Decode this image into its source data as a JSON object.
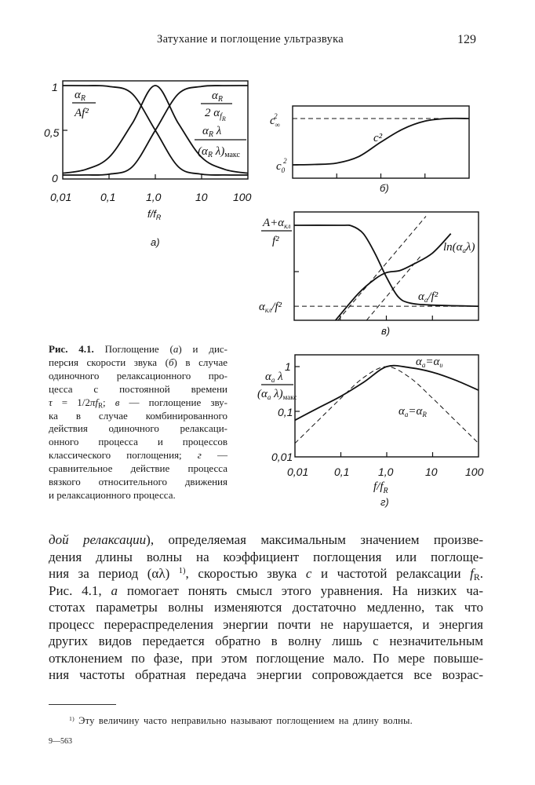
{
  "header": {
    "title": "Затухание и поглощение ультразвука",
    "page_number": "129"
  },
  "figure": {
    "a": {
      "panel": "а)",
      "ticks_x": [
        "0,01",
        "0,1",
        "1,0",
        "10",
        "100"
      ],
      "ticks_y": [
        "1",
        "0,5",
        "0"
      ],
      "xlabel_main": "f/f",
      "xlabel_sub": "R",
      "label1": {
        "num": "α",
        "num_sub": "R",
        "den": "Af²"
      },
      "label2": {
        "num": "α",
        "num_sub": "R",
        "den": "2 α",
        "den_sub": "f",
        "den_subsub": "R"
      },
      "label3": {
        "num": "α",
        "num_sub": "R",
        "num_tail": " λ",
        "den": "(α",
        "den_sub": "R",
        "den_tail": " λ)",
        "den_sub2": "макс"
      }
    },
    "b": {
      "panel": "б)",
      "c_inf": "c",
      "c_inf_sub": "∞",
      "c_inf_sup": "2",
      "c_0": "c",
      "c_0_sub": "0",
      "c_0_sup": "2",
      "curve": "c²"
    },
    "v": {
      "panel": "в)",
      "top_num": "A+α",
      "top_num_sub": "кл",
      "top_den": "f²",
      "bottom": "α",
      "bottom_sub": "кл",
      "bottom_tail": "/f²",
      "ln": "ln(α",
      "ln_sub": "a",
      "ln_tail": "λ)",
      "aa": "α",
      "aa_sub": "a",
      "aa_tail": "/f²"
    },
    "g": {
      "panel": "г)",
      "ticks_x": [
        "0,01",
        "0,1",
        "1,0",
        "10",
        "100"
      ],
      "ticks_y": [
        "1",
        "0,1",
        "0,01"
      ],
      "xlabel_main": "f/f",
      "xlabel_sub": "R",
      "ylabel": {
        "num": "α",
        "num_sub": "a",
        "num_tail": " λ",
        "den": "(α",
        "den_sub": "a",
        "den_tail": " λ)",
        "den_sub2": "макс"
      },
      "nu_label": {
        "a": "α",
        "a_sub": "a",
        "eq": "=α",
        "eq_sub": "υ"
      },
      "r_label": {
        "a": "α",
        "a_sub": "a",
        "eq": "=α",
        "eq_sub": "R"
      }
    }
  },
  "chart_data": [
    {
      "panel": "а)",
      "type": "line",
      "x_scale": "log",
      "xlim": [
        0.01,
        100
      ],
      "ylim": [
        0,
        1
      ],
      "xlabel": "f/fR",
      "series": [
        {
          "name": "αR/Af²",
          "style": "solid",
          "x": [
            0.01,
            0.0316,
            0.1,
            0.316,
            1,
            3.16,
            10,
            31.6,
            100
          ],
          "y": [
            1,
            0.999,
            0.99,
            0.909,
            0.5,
            0.091,
            0.0099,
            0.001,
            0.0001
          ]
        },
        {
          "name": "αR/2αfR",
          "style": "solid",
          "x": [
            0.01,
            0.0316,
            0.1,
            0.316,
            1,
            3.16,
            10,
            31.6,
            100
          ],
          "y": [
            0.0001,
            0.001,
            0.0099,
            0.091,
            0.5,
            0.909,
            0.99,
            0.999,
            1
          ]
        },
        {
          "name": "αRλ/(αRλ)макс",
          "style": "solid",
          "x": [
            0.01,
            0.0316,
            0.1,
            0.316,
            1,
            3.16,
            10,
            31.6,
            100
          ],
          "y": [
            0.02,
            0.063,
            0.198,
            0.575,
            1,
            0.575,
            0.198,
            0.063,
            0.02
          ]
        }
      ]
    },
    {
      "panel": "б)",
      "type": "line",
      "x_scale": "log",
      "xlim": [
        0.01,
        100
      ],
      "ylim": [
        0,
        1
      ],
      "series": [
        {
          "name": "c²",
          "style": "solid",
          "x": [
            0.01,
            0.0316,
            0.1,
            0.316,
            1,
            3.16,
            10,
            31.6,
            100
          ],
          "y": [
            0.185,
            0.19,
            0.21,
            0.3,
            0.5,
            0.68,
            0.79,
            0.826,
            0.826
          ]
        },
        {
          "name": "c∞²",
          "style": "dashed",
          "x": [
            0.01,
            100
          ],
          "y": [
            0.826,
            0.826
          ]
        }
      ]
    },
    {
      "panel": "в)",
      "type": "line",
      "x_scale": "log",
      "xlim": [
        0.01,
        100
      ],
      "ylim": [
        0,
        1
      ],
      "series": [
        {
          "name": "αa/f²",
          "style": "solid",
          "x": [
            0.01,
            0.1,
            0.178,
            0.316,
            0.562,
            1,
            1.78,
            3.16,
            10,
            100
          ],
          "y": [
            0.877,
            0.877,
            0.87,
            0.8,
            0.62,
            0.4,
            0.22,
            0.16,
            0.14,
            0.13
          ]
        },
        {
          "name": "ln(αaλ)",
          "style": "solid",
          "x": [
            0.079,
            0.251,
            0.562,
            1,
            2,
            3.98,
            10,
            25.1
          ],
          "y": [
            0,
            0.25,
            0.38,
            0.44,
            0.46,
            0.52,
            0.62,
            0.8
          ]
        },
        {
          "name": "αкл/f²",
          "style": "dashed",
          "x": [
            0.01,
            100
          ],
          "y": [
            0.13,
            0.13
          ]
        },
        {
          "style": "dashed",
          "x": [
            0.089,
            7.24
          ],
          "y": [
            0,
            0.96
          ]
        },
        {
          "style": "dashed",
          "x": [
            0.372,
            5.75
          ],
          "y": [
            0,
            0.6
          ]
        }
      ]
    },
    {
      "panel": "г)",
      "type": "line",
      "x_scale": "log",
      "y_scale": "log",
      "xlim": [
        0.01,
        100
      ],
      "ylim": [
        0.01,
        1.8
      ],
      "xlabel": "f/fR",
      "series": [
        {
          "name": "αa=αυ",
          "style": "solid",
          "x": [
            0.01,
            0.0316,
            0.1,
            0.316,
            1,
            3.16,
            10,
            31.6,
            100
          ],
          "y": [
            0.065,
            0.12,
            0.22,
            0.45,
            1.0,
            0.95,
            0.75,
            0.5,
            0.3
          ]
        },
        {
          "name": "αa=αR",
          "style": "dashed",
          "x": [
            0.01,
            0.0316,
            0.1,
            0.316,
            1,
            3.16,
            10,
            31.6,
            100
          ],
          "y": [
            0.02,
            0.063,
            0.198,
            0.575,
            1,
            0.575,
            0.198,
            0.063,
            0.02
          ]
        }
      ]
    }
  ],
  "caption": {
    "fig": "Рис. 4.1.",
    "l1": " Поглощение (",
    "l1i": "а",
    "l1b": ") и дис-",
    "l2": "персия скорости звука (",
    "l2i": "б",
    "l2b": ") в случае",
    "l3": "одиночного релаксационного про-",
    "l4": "цесса с постоянной времени",
    "l5a": "τ",
    "l5b": " = 1/2",
    "l5c": "πf",
    "l5sub": "R",
    "l5d": "; ",
    "l5e": "в",
    "l5f": " — поглощение зву-",
    "l6": "ка в случае комбинированного",
    "l7": "действия одиночного релаксаци-",
    "l8": "онного процесса и процессов",
    "l9": "классического поглощения; ",
    "l9i": "г",
    "l9b": " —",
    "l10": "сравнительное действие процесса",
    "l11": "вязкого относительного движения",
    "l12": "и релаксационного процесса."
  },
  "body": {
    "l1i": "дой релаксации",
    "l1": "), определяемая максимальным значением произве-",
    "l2": "дения длины волны на коэффициент поглощения или поглоще-",
    "l3a": "ния за период (αλ) ",
    "l3sup": "1)",
    "l3b": ", скоростью звука ",
    "l3c": "c",
    "l3d": " и частотой релаксации ",
    "l3e": "f",
    "l3sub": "R",
    "l3f": ".",
    "l4a": "Рис. 4.1, ",
    "l4i": "а",
    "l4b": " помогает понять смысл этого уравнения. На низких ча-",
    "l5": "стотах параметры волны изменяются достаточно медленно, так что",
    "l6": "процесс перераспределения энергии почти не нарушается, и энергия",
    "l7": "других видов передается обратно в волну лишь с незначительным",
    "l8": "отклонением по фазе, при этом поглощение мало. По мере повыше-",
    "l9": "ния частоты обратная передача энергии сопровождается все возрас-"
  },
  "footnote": {
    "mark": "1)",
    "text": " Эту величину часто неправильно называют поглощением на длину волны."
  },
  "signature": "9—563"
}
